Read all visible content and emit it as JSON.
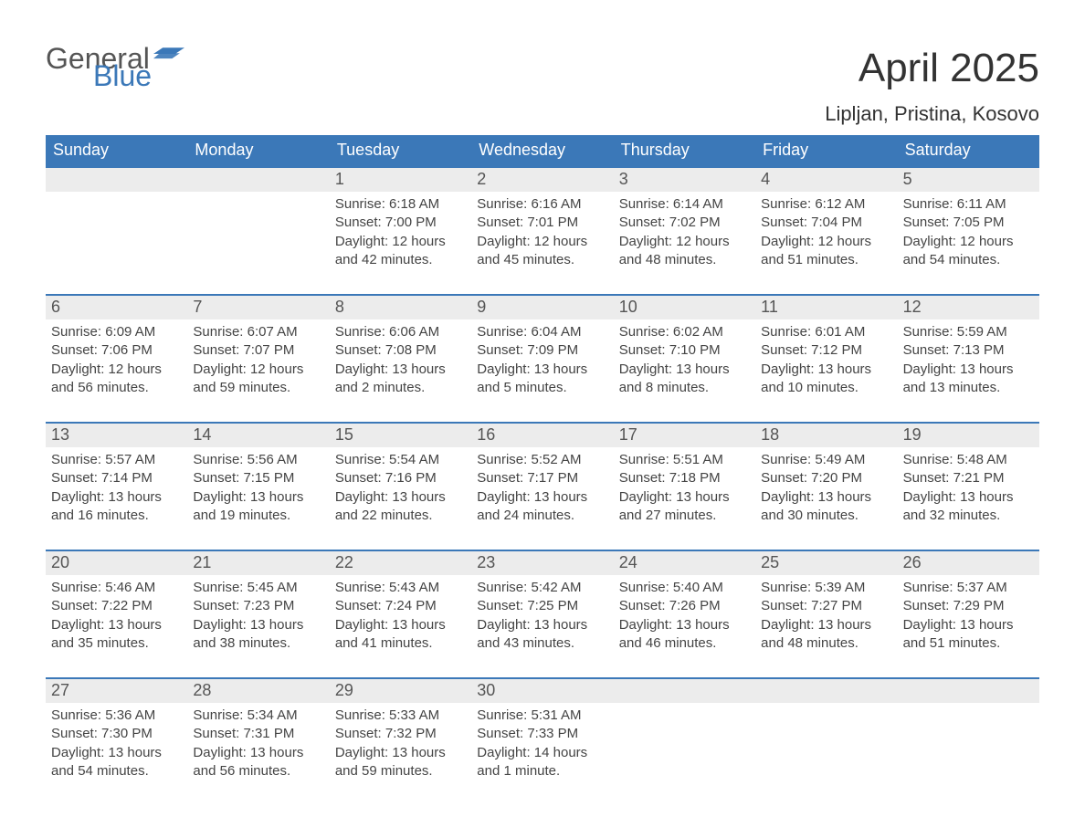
{
  "brand": {
    "part1": "General",
    "part2": "Blue",
    "logo_color": "#3b78b8"
  },
  "header": {
    "title": "April 2025",
    "location": "Lipljan, Pristina, Kosovo"
  },
  "colors": {
    "header_bg": "#3b78b8",
    "header_text": "#ffffff",
    "daynum_bg": "#ececec",
    "text": "#444444",
    "border": "#3b78b8"
  },
  "typography": {
    "title_fontsize": 44,
    "dayname_fontsize": 18,
    "body_fontsize": 15
  },
  "dayNames": [
    "Sunday",
    "Monday",
    "Tuesday",
    "Wednesday",
    "Thursday",
    "Friday",
    "Saturday"
  ],
  "weeks": [
    [
      {
        "day": "",
        "sunrise": "",
        "sunset": "",
        "daylight1": "",
        "daylight2": ""
      },
      {
        "day": "",
        "sunrise": "",
        "sunset": "",
        "daylight1": "",
        "daylight2": ""
      },
      {
        "day": "1",
        "sunrise": "Sunrise: 6:18 AM",
        "sunset": "Sunset: 7:00 PM",
        "daylight1": "Daylight: 12 hours",
        "daylight2": "and 42 minutes."
      },
      {
        "day": "2",
        "sunrise": "Sunrise: 6:16 AM",
        "sunset": "Sunset: 7:01 PM",
        "daylight1": "Daylight: 12 hours",
        "daylight2": "and 45 minutes."
      },
      {
        "day": "3",
        "sunrise": "Sunrise: 6:14 AM",
        "sunset": "Sunset: 7:02 PM",
        "daylight1": "Daylight: 12 hours",
        "daylight2": "and 48 minutes."
      },
      {
        "day": "4",
        "sunrise": "Sunrise: 6:12 AM",
        "sunset": "Sunset: 7:04 PM",
        "daylight1": "Daylight: 12 hours",
        "daylight2": "and 51 minutes."
      },
      {
        "day": "5",
        "sunrise": "Sunrise: 6:11 AM",
        "sunset": "Sunset: 7:05 PM",
        "daylight1": "Daylight: 12 hours",
        "daylight2": "and 54 minutes."
      }
    ],
    [
      {
        "day": "6",
        "sunrise": "Sunrise: 6:09 AM",
        "sunset": "Sunset: 7:06 PM",
        "daylight1": "Daylight: 12 hours",
        "daylight2": "and 56 minutes."
      },
      {
        "day": "7",
        "sunrise": "Sunrise: 6:07 AM",
        "sunset": "Sunset: 7:07 PM",
        "daylight1": "Daylight: 12 hours",
        "daylight2": "and 59 minutes."
      },
      {
        "day": "8",
        "sunrise": "Sunrise: 6:06 AM",
        "sunset": "Sunset: 7:08 PM",
        "daylight1": "Daylight: 13 hours",
        "daylight2": "and 2 minutes."
      },
      {
        "day": "9",
        "sunrise": "Sunrise: 6:04 AM",
        "sunset": "Sunset: 7:09 PM",
        "daylight1": "Daylight: 13 hours",
        "daylight2": "and 5 minutes."
      },
      {
        "day": "10",
        "sunrise": "Sunrise: 6:02 AM",
        "sunset": "Sunset: 7:10 PM",
        "daylight1": "Daylight: 13 hours",
        "daylight2": "and 8 minutes."
      },
      {
        "day": "11",
        "sunrise": "Sunrise: 6:01 AM",
        "sunset": "Sunset: 7:12 PM",
        "daylight1": "Daylight: 13 hours",
        "daylight2": "and 10 minutes."
      },
      {
        "day": "12",
        "sunrise": "Sunrise: 5:59 AM",
        "sunset": "Sunset: 7:13 PM",
        "daylight1": "Daylight: 13 hours",
        "daylight2": "and 13 minutes."
      }
    ],
    [
      {
        "day": "13",
        "sunrise": "Sunrise: 5:57 AM",
        "sunset": "Sunset: 7:14 PM",
        "daylight1": "Daylight: 13 hours",
        "daylight2": "and 16 minutes."
      },
      {
        "day": "14",
        "sunrise": "Sunrise: 5:56 AM",
        "sunset": "Sunset: 7:15 PM",
        "daylight1": "Daylight: 13 hours",
        "daylight2": "and 19 minutes."
      },
      {
        "day": "15",
        "sunrise": "Sunrise: 5:54 AM",
        "sunset": "Sunset: 7:16 PM",
        "daylight1": "Daylight: 13 hours",
        "daylight2": "and 22 minutes."
      },
      {
        "day": "16",
        "sunrise": "Sunrise: 5:52 AM",
        "sunset": "Sunset: 7:17 PM",
        "daylight1": "Daylight: 13 hours",
        "daylight2": "and 24 minutes."
      },
      {
        "day": "17",
        "sunrise": "Sunrise: 5:51 AM",
        "sunset": "Sunset: 7:18 PM",
        "daylight1": "Daylight: 13 hours",
        "daylight2": "and 27 minutes."
      },
      {
        "day": "18",
        "sunrise": "Sunrise: 5:49 AM",
        "sunset": "Sunset: 7:20 PM",
        "daylight1": "Daylight: 13 hours",
        "daylight2": "and 30 minutes."
      },
      {
        "day": "19",
        "sunrise": "Sunrise: 5:48 AM",
        "sunset": "Sunset: 7:21 PM",
        "daylight1": "Daylight: 13 hours",
        "daylight2": "and 32 minutes."
      }
    ],
    [
      {
        "day": "20",
        "sunrise": "Sunrise: 5:46 AM",
        "sunset": "Sunset: 7:22 PM",
        "daylight1": "Daylight: 13 hours",
        "daylight2": "and 35 minutes."
      },
      {
        "day": "21",
        "sunrise": "Sunrise: 5:45 AM",
        "sunset": "Sunset: 7:23 PM",
        "daylight1": "Daylight: 13 hours",
        "daylight2": "and 38 minutes."
      },
      {
        "day": "22",
        "sunrise": "Sunrise: 5:43 AM",
        "sunset": "Sunset: 7:24 PM",
        "daylight1": "Daylight: 13 hours",
        "daylight2": "and 41 minutes."
      },
      {
        "day": "23",
        "sunrise": "Sunrise: 5:42 AM",
        "sunset": "Sunset: 7:25 PM",
        "daylight1": "Daylight: 13 hours",
        "daylight2": "and 43 minutes."
      },
      {
        "day": "24",
        "sunrise": "Sunrise: 5:40 AM",
        "sunset": "Sunset: 7:26 PM",
        "daylight1": "Daylight: 13 hours",
        "daylight2": "and 46 minutes."
      },
      {
        "day": "25",
        "sunrise": "Sunrise: 5:39 AM",
        "sunset": "Sunset: 7:27 PM",
        "daylight1": "Daylight: 13 hours",
        "daylight2": "and 48 minutes."
      },
      {
        "day": "26",
        "sunrise": "Sunrise: 5:37 AM",
        "sunset": "Sunset: 7:29 PM",
        "daylight1": "Daylight: 13 hours",
        "daylight2": "and 51 minutes."
      }
    ],
    [
      {
        "day": "27",
        "sunrise": "Sunrise: 5:36 AM",
        "sunset": "Sunset: 7:30 PM",
        "daylight1": "Daylight: 13 hours",
        "daylight2": "and 54 minutes."
      },
      {
        "day": "28",
        "sunrise": "Sunrise: 5:34 AM",
        "sunset": "Sunset: 7:31 PM",
        "daylight1": "Daylight: 13 hours",
        "daylight2": "and 56 minutes."
      },
      {
        "day": "29",
        "sunrise": "Sunrise: 5:33 AM",
        "sunset": "Sunset: 7:32 PM",
        "daylight1": "Daylight: 13 hours",
        "daylight2": "and 59 minutes."
      },
      {
        "day": "30",
        "sunrise": "Sunrise: 5:31 AM",
        "sunset": "Sunset: 7:33 PM",
        "daylight1": "Daylight: 14 hours",
        "daylight2": "and 1 minute."
      },
      {
        "day": "",
        "sunrise": "",
        "sunset": "",
        "daylight1": "",
        "daylight2": ""
      },
      {
        "day": "",
        "sunrise": "",
        "sunset": "",
        "daylight1": "",
        "daylight2": ""
      },
      {
        "day": "",
        "sunrise": "",
        "sunset": "",
        "daylight1": "",
        "daylight2": ""
      }
    ]
  ]
}
